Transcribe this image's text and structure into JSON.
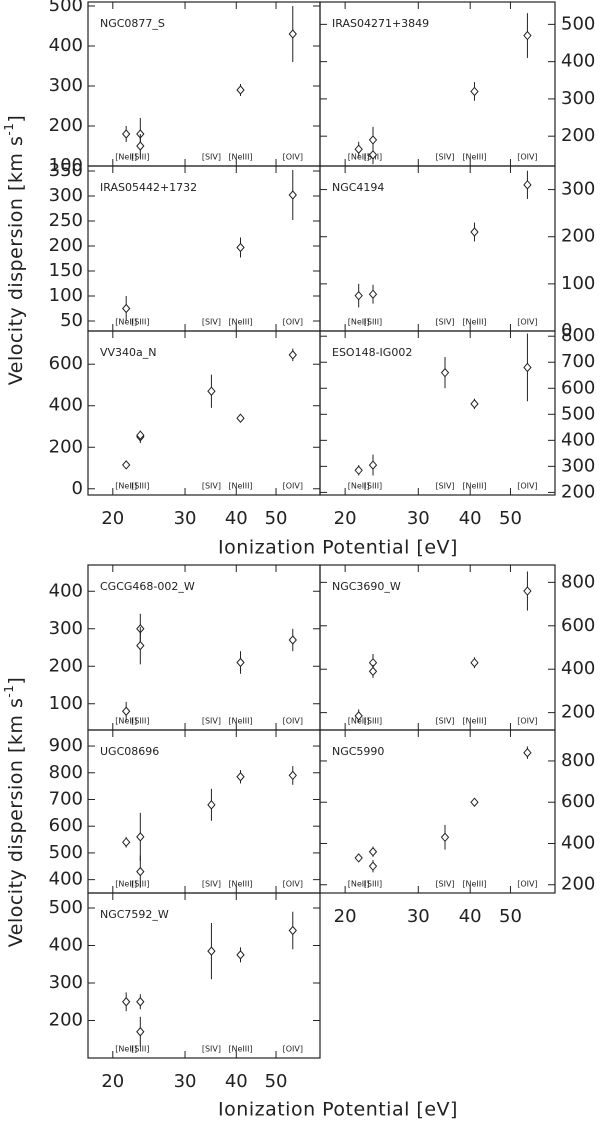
{
  "figures": [
    {
      "xlabel": "Ionization Potential [eV]",
      "ylabel": {
        "text": "Velocity dispersion [km s",
        "superscript": "-1",
        "close": "]"
      }
    },
    {
      "xlabel": "Ionization Potential [eV]",
      "ylabel": {
        "text": "Velocity dispersion [km s",
        "superscript": "-1",
        "close": "]"
      }
    }
  ],
  "chart_data": [
    {
      "type": "scatter",
      "title": "NGC0877_S",
      "y_axis_side": "left",
      "xtick_labels": false,
      "xlim": [
        17.4,
        64
      ],
      "xticks": [
        20,
        30,
        40,
        50
      ],
      "ylim": [
        100,
        510
      ],
      "yticks": [
        100,
        200,
        300,
        400,
        500
      ],
      "x": [
        21.56,
        23.34,
        23.34,
        40.96,
        54.93
      ],
      "values": [
        180,
        180,
        150,
        290,
        430
      ],
      "errors": [
        20,
        40,
        30,
        15,
        70
      ],
      "annotations": [
        {
          "text": "[NeII]",
          "x": 21.56
        },
        {
          "text": "[SIII]",
          "x": 23.34
        },
        {
          "text": "[SIV]",
          "x": 34.79
        },
        {
          "text": "[NeIII]",
          "x": 40.96
        },
        {
          "text": "[OIV]",
          "x": 54.93
        }
      ]
    },
    {
      "type": "scatter",
      "title": "IRAS04271+3849",
      "y_axis_side": "right",
      "xtick_labels": false,
      "xlim": [
        17.4,
        64
      ],
      "xticks": [
        20,
        30,
        40,
        50
      ],
      "ylim": [
        120,
        560
      ],
      "yticks": [
        200,
        300,
        400,
        500
      ],
      "x": [
        21.56,
        23.34,
        23.34,
        40.96,
        54.93
      ],
      "values": [
        165,
        190,
        150,
        320,
        470
      ],
      "errors": [
        20,
        35,
        25,
        25,
        60
      ],
      "annotations": [
        {
          "text": "[NeII]",
          "x": 21.56
        },
        {
          "text": "[SIII]",
          "x": 23.34
        },
        {
          "text": "[SIV]",
          "x": 34.79
        },
        {
          "text": "[NeIII]",
          "x": 40.96
        },
        {
          "text": "[OIV]",
          "x": 54.93
        }
      ]
    },
    {
      "type": "scatter",
      "title": "IRAS05442+1732",
      "y_axis_side": "left",
      "xtick_labels": false,
      "xlim": [
        17.4,
        64
      ],
      "xticks": [
        20,
        30,
        40,
        50
      ],
      "ylim": [
        30,
        360
      ],
      "yticks": [
        50,
        100,
        150,
        200,
        250,
        300,
        350
      ],
      "x": [
        21.56,
        40.96,
        54.93
      ],
      "values": [
        75,
        197,
        302
      ],
      "errors": [
        25,
        20,
        50
      ],
      "annotations": [
        {
          "text": "[NeII]",
          "x": 21.56
        },
        {
          "text": "[SIII]",
          "x": 23.34
        },
        {
          "text": "[SIV]",
          "x": 34.79
        },
        {
          "text": "[NeIII]",
          "x": 40.96
        },
        {
          "text": "[OIV]",
          "x": 54.93
        }
      ]
    },
    {
      "type": "scatter",
      "title": "NGC4194",
      "y_axis_side": "right",
      "xtick_labels": false,
      "xlim": [
        17.4,
        64
      ],
      "xticks": [
        20,
        30,
        40,
        50
      ],
      "ylim": [
        0,
        350
      ],
      "yticks": [
        0,
        100,
        200,
        300
      ],
      "x": [
        21.56,
        23.34,
        40.96,
        54.93
      ],
      "values": [
        75,
        78,
        210,
        310
      ],
      "errors": [
        25,
        20,
        20,
        30
      ],
      "annotations": [
        {
          "text": "[NeII]",
          "x": 21.56
        },
        {
          "text": "[SIII]",
          "x": 23.34
        },
        {
          "text": "[SIV]",
          "x": 34.79
        },
        {
          "text": "[NeIII]",
          "x": 40.96
        },
        {
          "text": "[OIV]",
          "x": 54.93
        }
      ]
    },
    {
      "type": "scatter",
      "title": "VV340a_N",
      "y_axis_side": "left",
      "xtick_labels": true,
      "xlim": [
        17.4,
        64
      ],
      "xticks": [
        20,
        30,
        40,
        50
      ],
      "ylim": [
        -30,
        760
      ],
      "yticks": [
        0,
        200,
        400,
        600
      ],
      "x": [
        21.56,
        23.34,
        23.34,
        34.79,
        40.96,
        54.93
      ],
      "values": [
        115,
        250,
        258,
        470,
        340,
        645
      ],
      "errors": [
        20,
        30,
        20,
        80,
        20,
        30
      ],
      "annotations": [
        {
          "text": "[NeII]",
          "x": 21.56
        },
        {
          "text": "[SIII]",
          "x": 23.34
        },
        {
          "text": "[SIV]",
          "x": 34.79
        },
        {
          "text": "[NeIII]",
          "x": 40.96
        },
        {
          "text": "[OIV]",
          "x": 54.93
        }
      ]
    },
    {
      "type": "scatter",
      "title": "ESO148-IG002",
      "y_axis_side": "right",
      "xtick_labels": true,
      "xlim": [
        17.4,
        64
      ],
      "xticks": [
        20,
        30,
        40,
        50
      ],
      "ylim": [
        190,
        820
      ],
      "yticks": [
        200,
        300,
        400,
        500,
        600,
        700,
        800
      ],
      "x": [
        21.56,
        23.34,
        34.79,
        40.96,
        54.93
      ],
      "values": [
        285,
        305,
        660,
        540,
        680
      ],
      "errors": [
        20,
        40,
        60,
        20,
        130
      ],
      "annotations": [
        {
          "text": "[NeII]",
          "x": 21.56
        },
        {
          "text": "[SIII]",
          "x": 23.34
        },
        {
          "text": "[SIV]",
          "x": 34.79
        },
        {
          "text": "[NeIII]",
          "x": 40.96
        },
        {
          "text": "[OIV]",
          "x": 54.93
        }
      ]
    },
    {
      "type": "scatter",
      "title": "CGCG468-002_W",
      "y_axis_side": "left",
      "xtick_labels": false,
      "xlim": [
        17.4,
        64
      ],
      "xticks": [
        20,
        30,
        40,
        50
      ],
      "ylim": [
        30,
        470
      ],
      "yticks": [
        100,
        200,
        300,
        400
      ],
      "x": [
        21.56,
        23.34,
        23.34,
        40.96,
        54.93
      ],
      "values": [
        80,
        300,
        255,
        210,
        270
      ],
      "errors": [
        25,
        40,
        50,
        30,
        30
      ],
      "annotations": [
        {
          "text": "[NeII]",
          "x": 21.56
        },
        {
          "text": "[SIII]",
          "x": 23.34
        },
        {
          "text": "[SIV]",
          "x": 34.79
        },
        {
          "text": "[NeIII]",
          "x": 40.96
        },
        {
          "text": "[OIV]",
          "x": 54.93
        }
      ]
    },
    {
      "type": "scatter",
      "title": "NGC3690_W",
      "y_axis_side": "right",
      "xtick_labels": false,
      "xlim": [
        17.4,
        64
      ],
      "xticks": [
        20,
        30,
        40,
        50
      ],
      "ylim": [
        120,
        880
      ],
      "yticks": [
        200,
        400,
        600,
        800
      ],
      "x": [
        21.56,
        23.34,
        23.34,
        40.96,
        54.93
      ],
      "values": [
        185,
        430,
        390,
        430,
        760
      ],
      "errors": [
        30,
        40,
        30,
        25,
        90
      ],
      "annotations": [
        {
          "text": "[NeII]",
          "x": 21.56
        },
        {
          "text": "[SIII]",
          "x": 23.34
        },
        {
          "text": "[SIV]",
          "x": 34.79
        },
        {
          "text": "[NeIII]",
          "x": 40.96
        },
        {
          "text": "[OIV]",
          "x": 54.93
        }
      ]
    },
    {
      "type": "scatter",
      "title": "UGC08696",
      "y_axis_side": "left",
      "xtick_labels": false,
      "xlim": [
        17.4,
        64
      ],
      "xticks": [
        20,
        30,
        40,
        50
      ],
      "ylim": [
        350,
        960
      ],
      "yticks": [
        400,
        500,
        600,
        700,
        800,
        900
      ],
      "x": [
        21.56,
        23.34,
        23.34,
        34.79,
        40.96,
        54.93
      ],
      "values": [
        540,
        560,
        430,
        680,
        785,
        790
      ],
      "errors": [
        20,
        90,
        60,
        60,
        25,
        35
      ],
      "annotations": [
        {
          "text": "[NeII]",
          "x": 21.56
        },
        {
          "text": "[SIII]",
          "x": 23.34
        },
        {
          "text": "[SIV]",
          "x": 34.79
        },
        {
          "text": "[NeIII]",
          "x": 40.96
        },
        {
          "text": "[OIV]",
          "x": 54.93
        }
      ]
    },
    {
      "type": "scatter",
      "title": "NGC5990",
      "y_axis_side": "right",
      "xtick_labels": true,
      "xlim": [
        17.4,
        64
      ],
      "xticks": [
        20,
        30,
        40,
        50
      ],
      "ylim": [
        160,
        950
      ],
      "yticks": [
        200,
        400,
        600,
        800
      ],
      "x": [
        21.56,
        23.34,
        23.34,
        34.79,
        40.96,
        54.93
      ],
      "values": [
        330,
        360,
        290,
        430,
        600,
        840
      ],
      "errors": [
        15,
        25,
        30,
        60,
        20,
        30
      ],
      "annotations": [
        {
          "text": "[NeII]",
          "x": 21.56
        },
        {
          "text": "[SIII]",
          "x": 23.34
        },
        {
          "text": "[SIV]",
          "x": 34.79
        },
        {
          "text": "[NeIII]",
          "x": 40.96
        },
        {
          "text": "[OIV]",
          "x": 54.93
        }
      ]
    },
    {
      "type": "scatter",
      "title": "NGC7592_W",
      "y_axis_side": "left",
      "xtick_labels": true,
      "xlim": [
        17.4,
        64
      ],
      "xticks": [
        20,
        30,
        40,
        50
      ],
      "ylim": [
        100,
        540
      ],
      "yticks": [
        200,
        300,
        400,
        500
      ],
      "x": [
        21.56,
        23.34,
        23.34,
        34.79,
        40.96,
        54.93
      ],
      "values": [
        250,
        250,
        170,
        385,
        375,
        440
      ],
      "errors": [
        25,
        20,
        40,
        75,
        20,
        50
      ],
      "annotations": [
        {
          "text": "[NeII]",
          "x": 21.56
        },
        {
          "text": "[SIII]",
          "x": 23.34
        },
        {
          "text": "[SIV]",
          "x": 34.79
        },
        {
          "text": "[NeIII]",
          "x": 40.96
        },
        {
          "text": "[OIV]",
          "x": 54.93
        }
      ]
    }
  ]
}
